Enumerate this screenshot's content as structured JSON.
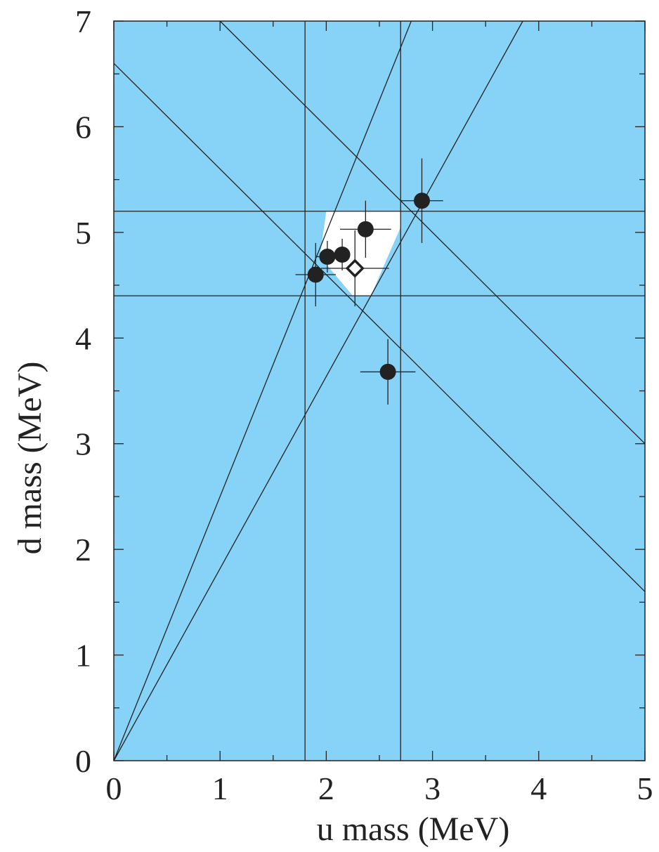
{
  "chart_data": {
    "type": "scatter",
    "title": "",
    "xlabel": "u mass (MeV)",
    "ylabel": "d mass (MeV)",
    "xlim": [
      0,
      5
    ],
    "ylim": [
      0,
      7
    ],
    "x_ticks": [
      "0",
      "1",
      "2",
      "3",
      "4",
      "5"
    ],
    "y_ticks": [
      "0",
      "1",
      "2",
      "3",
      "4",
      "5",
      "6",
      "7"
    ],
    "grid": false,
    "background_color": "#87D3F7",
    "allowed_region_color": "#FFFFFF",
    "line_color": "#222222",
    "allowed_region": [
      [
        2.0,
        5.2
      ],
      [
        2.7,
        5.2
      ],
      [
        2.7,
        5.05
      ],
      [
        2.42,
        4.4
      ],
      [
        2.25,
        4.4
      ],
      [
        1.94,
        4.77
      ]
    ],
    "constraint_lines": [
      {
        "from": [
          1.8,
          0
        ],
        "to": [
          1.8,
          7
        ]
      },
      {
        "from": [
          2.7,
          0
        ],
        "to": [
          2.7,
          7
        ]
      },
      {
        "from": [
          0,
          4.4
        ],
        "to": [
          5,
          4.4
        ]
      },
      {
        "from": [
          0,
          5.2
        ],
        "to": [
          5,
          5.2
        ]
      },
      {
        "from": [
          0,
          0
        ],
        "to": [
          2.8,
          7
        ]
      },
      {
        "from": [
          0,
          0
        ],
        "to": [
          3.85,
          7
        ]
      },
      {
        "from": [
          0,
          6.6
        ],
        "to": [
          5,
          1.6
        ]
      },
      {
        "from": [
          1.0,
          7
        ],
        "to": [
          5,
          3.0
        ]
      }
    ],
    "points": [
      {
        "x": 1.9,
        "y": 4.6,
        "xerr": 0.19,
        "yerr": 0.3,
        "marker": "filled"
      },
      {
        "x": 2.01,
        "y": 4.77,
        "xerr": 0.1,
        "yerr": 0.15,
        "marker": "filled"
      },
      {
        "x": 2.15,
        "y": 4.79,
        "xerr": 0.06,
        "yerr": 0.15,
        "marker": "filled"
      },
      {
        "x": 2.37,
        "y": 5.03,
        "xerr": 0.24,
        "yerr": 0.27,
        "marker": "filled"
      },
      {
        "x": 2.9,
        "y": 5.3,
        "xerr": 0.2,
        "yerr": 0.4,
        "marker": "filled"
      },
      {
        "x": 2.58,
        "y": 3.68,
        "xerr": 0.26,
        "yerr": 0.31,
        "marker": "filled"
      },
      {
        "x": 2.27,
        "y": 4.66,
        "xerr": 0.32,
        "yerr": 0.36,
        "marker": "open-diamond"
      }
    ]
  }
}
